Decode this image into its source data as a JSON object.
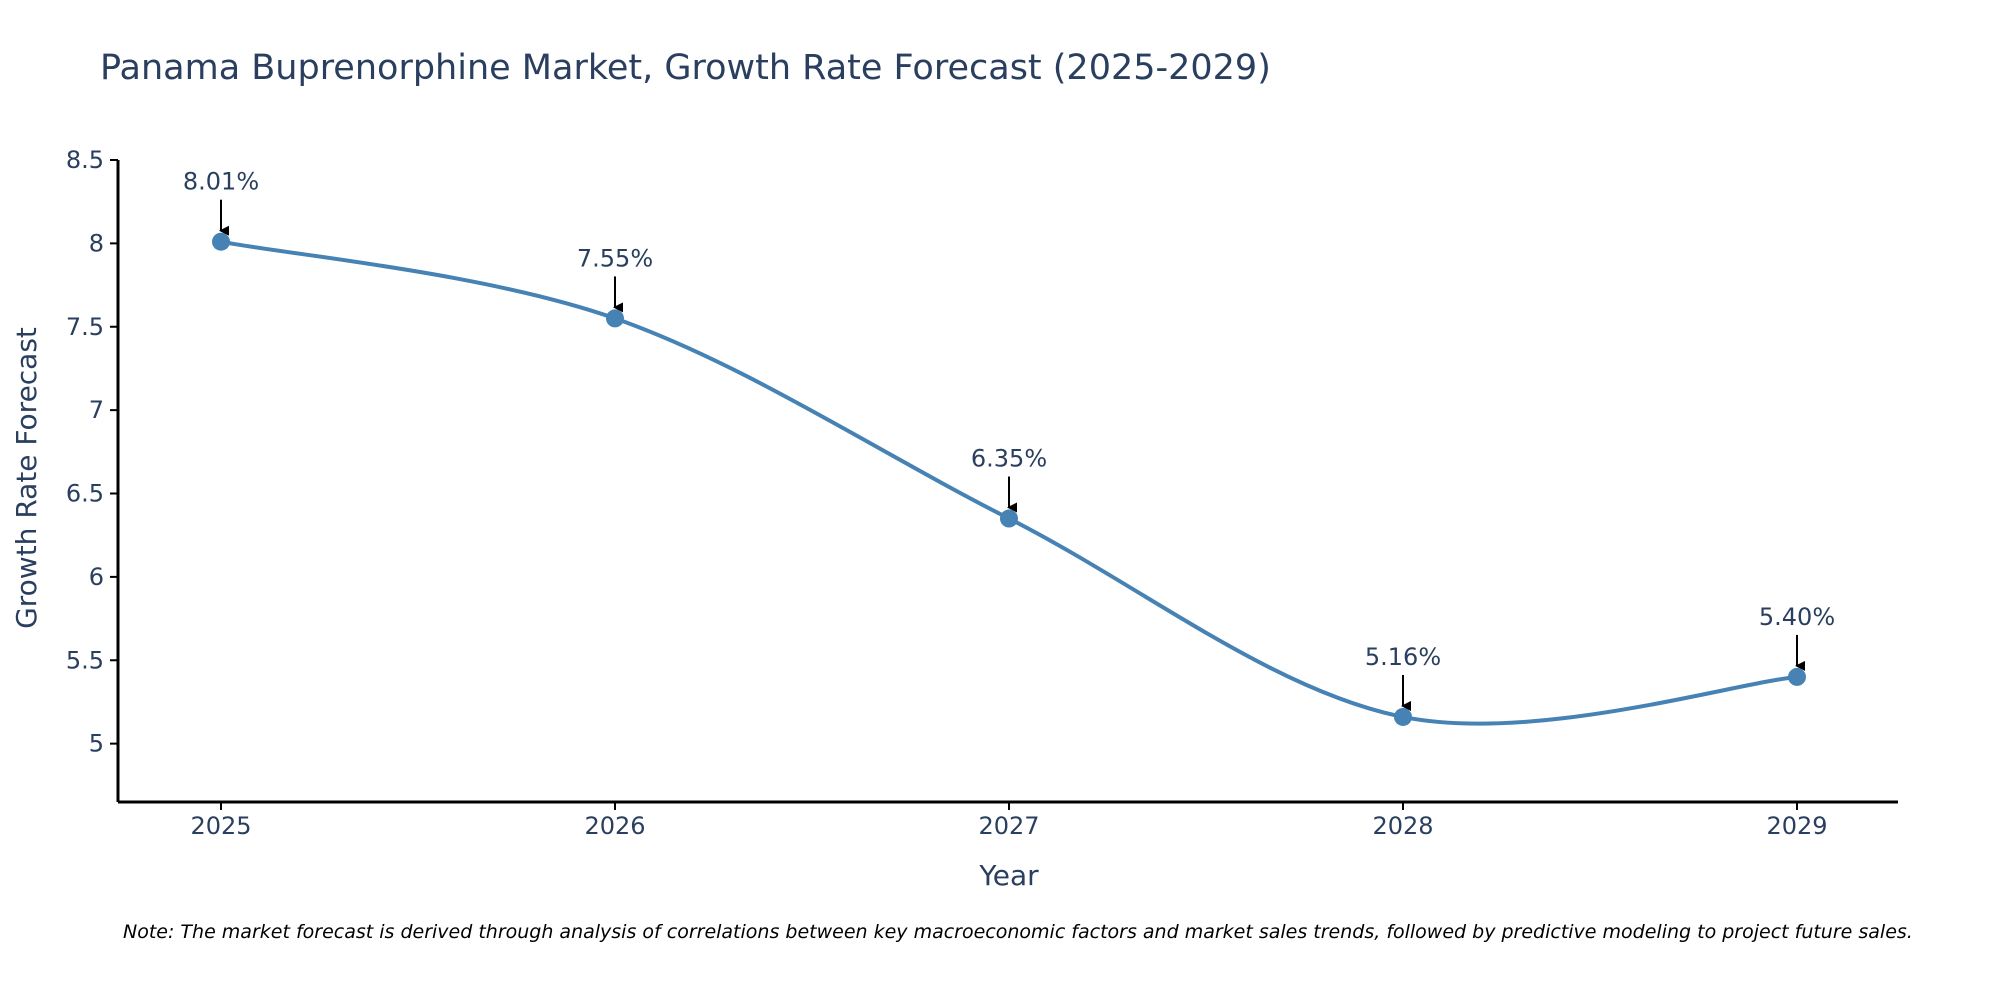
{
  "chart_data": {
    "type": "line",
    "title": "Panama Buprenorphine Market, Growth Rate Forecast (2025-2029)",
    "xlabel": "Year",
    "ylabel": "Growth Rate Forecast",
    "categories": [
      "2025",
      "2026",
      "2027",
      "2028",
      "2029"
    ],
    "values": [
      8.01,
      7.55,
      6.35,
      5.16,
      5.4
    ],
    "annotations": [
      "8.01%",
      "7.55%",
      "6.35%",
      "5.16%",
      "5.40%"
    ],
    "yticks": [
      "8.5",
      "8",
      "7.5",
      "7",
      "6.5",
      "6",
      "5.5",
      "5"
    ],
    "ytick_values": [
      8.5,
      8,
      7.5,
      7,
      6.5,
      6,
      5.5,
      5
    ],
    "ylim": [
      4.65,
      8.5
    ],
    "line_color": "#4682b4",
    "smooth": true,
    "grid": false
  },
  "note": "Note: The market forecast is derived through analysis of correlations between key macroeconomic factors and market sales trends, followed by predictive modeling to project future sales."
}
